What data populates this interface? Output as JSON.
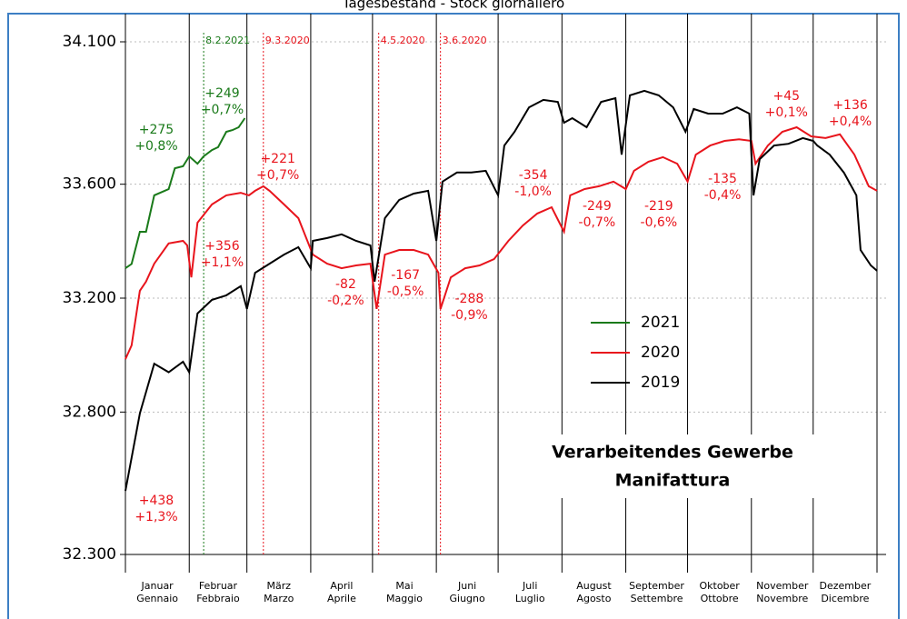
{
  "chart_data": {
    "type": "line",
    "title": "Tagesbestand - Stock giornaliero",
    "box_text": [
      "Verarbeitendes Gewerbe",
      "Manifattura"
    ],
    "xlim": [
      0,
      365
    ],
    "ylim": [
      32300,
      34100
    ],
    "yticks": [
      {
        "value": 32300,
        "label": "32.300"
      },
      {
        "value": 32800,
        "label": "32.800"
      },
      {
        "value": 33200,
        "label": "33.200"
      },
      {
        "value": 33600,
        "label": "33.600"
      },
      {
        "value": 34100,
        "label": "34.100"
      }
    ],
    "xticks": [
      0,
      31,
      59,
      90,
      120,
      151,
      181,
      212,
      243,
      273,
      304,
      334,
      365
    ],
    "month_labels": [
      [
        "Januar",
        "Gennaio"
      ],
      [
        "Februar",
        "Febbraio"
      ],
      [
        "März",
        "Marzo"
      ],
      [
        "April",
        "Aprile"
      ],
      [
        "Mai",
        "Maggio"
      ],
      [
        "Juni",
        "Giugno"
      ],
      [
        "Juli",
        "Luglio"
      ],
      [
        "August",
        "Agosto"
      ],
      [
        "September",
        "Settembre"
      ],
      [
        "Oktober",
        "Ottobre"
      ],
      [
        "November",
        "Novembre"
      ],
      [
        "Dezember",
        "Dicembre"
      ]
    ],
    "grid": true,
    "series": [
      {
        "name": "2021",
        "color": "#1a7a1a",
        "x": [
          0,
          3,
          7,
          10,
          14,
          21,
          24,
          28,
          31,
          35,
          38,
          42,
          45,
          49,
          52,
          55,
          58
        ],
        "values": [
          33305,
          33320,
          33433,
          33433,
          33561,
          33583,
          33656,
          33663,
          33698,
          33672,
          33698,
          33720,
          33730,
          33784,
          33790,
          33800,
          33832
        ]
      },
      {
        "name": "2020",
        "color": "#e8141c",
        "x": [
          0,
          3,
          7,
          10,
          14,
          21,
          28,
          30,
          32,
          35,
          42,
          49,
          56,
          60,
          63,
          67,
          70,
          77,
          84,
          91,
          98,
          105,
          112,
          119,
          122,
          126,
          133,
          140,
          147,
          152,
          153,
          158,
          165,
          172,
          179,
          186,
          193,
          200,
          207,
          213,
          216,
          223,
          230,
          237,
          243,
          247,
          254,
          261,
          268,
          273,
          277,
          284,
          291,
          298,
          304,
          306,
          312,
          319,
          326,
          333,
          340,
          347,
          354,
          361,
          365
        ],
        "values": [
          32986,
          33034,
          33226,
          33258,
          33321,
          33392,
          33401,
          33385,
          33273,
          33465,
          33529,
          33561,
          33570,
          33561,
          33577,
          33593,
          33577,
          33529,
          33481,
          33353,
          33321,
          33305,
          33315,
          33321,
          33162,
          33353,
          33369,
          33369,
          33353,
          33289,
          33162,
          33273,
          33305,
          33315,
          33337,
          33401,
          33455,
          33497,
          33519,
          33433,
          33561,
          33583,
          33593,
          33609,
          33583,
          33647,
          33679,
          33695,
          33672,
          33609,
          33704,
          33736,
          33752,
          33758,
          33752,
          33672,
          33736,
          33784,
          33800,
          33768,
          33762,
          33775,
          33704,
          33593,
          33577
        ]
      },
      {
        "name": "2019",
        "color": "#000000",
        "x": [
          0,
          7,
          14,
          21,
          28,
          31,
          35,
          42,
          49,
          56,
          59,
          63,
          70,
          77,
          84,
          90,
          91,
          98,
          105,
          112,
          119,
          121,
          126,
          133,
          140,
          147,
          151,
          154,
          161,
          168,
          175,
          181,
          184,
          189,
          196,
          203,
          210,
          213,
          217,
          224,
          231,
          238,
          241,
          245,
          252,
          259,
          266,
          272,
          276,
          283,
          290,
          297,
          303,
          305,
          308,
          315,
          322,
          329,
          334,
          336,
          342,
          349,
          355,
          357,
          362,
          365
        ],
        "values": [
          32523,
          32795,
          32970,
          32940,
          32977,
          32940,
          33146,
          33194,
          33210,
          33242,
          33162,
          33289,
          33321,
          33353,
          33379,
          33305,
          33401,
          33411,
          33424,
          33401,
          33385,
          33258,
          33481,
          33545,
          33567,
          33577,
          33401,
          33609,
          33641,
          33641,
          33647,
          33561,
          33736,
          33784,
          33870,
          33896,
          33889,
          33816,
          33832,
          33800,
          33889,
          33902,
          33704,
          33912,
          33928,
          33912,
          33870,
          33784,
          33864,
          33848,
          33848,
          33870,
          33848,
          33561,
          33688,
          33736,
          33742,
          33762,
          33752,
          33736,
          33704,
          33640,
          33561,
          33369,
          33315,
          33296
        ]
      }
    ],
    "events": [
      {
        "label": "8.2.2021",
        "x": 38,
        "color": "#1a7a1a"
      },
      {
        "label": "9.3.2020",
        "x": 67,
        "color": "#e8141c"
      },
      {
        "label": "4.5.2020",
        "x": 123,
        "color": "#e8141c"
      },
      {
        "label": "3.6.2020",
        "x": 153,
        "color": "#e8141c"
      }
    ],
    "annotations": [
      {
        "lines": [
          "+275",
          "+0,8%"
        ],
        "x": 15,
        "y": 33790,
        "color": "#1a7a1a"
      },
      {
        "lines": [
          "+249",
          "+0,7%"
        ],
        "x": 47,
        "y": 33918,
        "color": "#1a7a1a"
      },
      {
        "lines": [
          "+221",
          "+0,7%"
        ],
        "x": 74,
        "y": 33688,
        "color": "#e8141c"
      },
      {
        "lines": [
          "+356",
          "+1,1%"
        ],
        "x": 47,
        "y": 33382,
        "color": "#e8141c"
      },
      {
        "lines": [
          "-82",
          "-0,2%"
        ],
        "x": 107,
        "y": 33248,
        "color": "#e8141c"
      },
      {
        "lines": [
          "-167",
          "-0,5%"
        ],
        "x": 136,
        "y": 33280,
        "color": "#e8141c"
      },
      {
        "lines": [
          "-288",
          "-0,9%"
        ],
        "x": 167,
        "y": 33197,
        "color": "#e8141c"
      },
      {
        "lines": [
          "-354",
          "-1,0%"
        ],
        "x": 198,
        "y": 33631,
        "color": "#e8141c"
      },
      {
        "lines": [
          "-249",
          "-0,7%"
        ],
        "x": 229,
        "y": 33522,
        "color": "#e8141c"
      },
      {
        "lines": [
          "-219",
          "-0,6%"
        ],
        "x": 259,
        "y": 33522,
        "color": "#e8141c"
      },
      {
        "lines": [
          "-135",
          "-0,4%"
        ],
        "x": 290,
        "y": 33618,
        "color": "#e8141c"
      },
      {
        "lines": [
          "+45",
          "+0,1%"
        ],
        "x": 321,
        "y": 33909,
        "color": "#e8141c"
      },
      {
        "lines": [
          "+136",
          "+0,4%"
        ],
        "x": 352,
        "y": 33877,
        "color": "#e8141c"
      },
      {
        "lines": [
          "+438",
          "+1,3%"
        ],
        "x": 15,
        "y": 32488,
        "color": "#e8141c"
      }
    ]
  }
}
